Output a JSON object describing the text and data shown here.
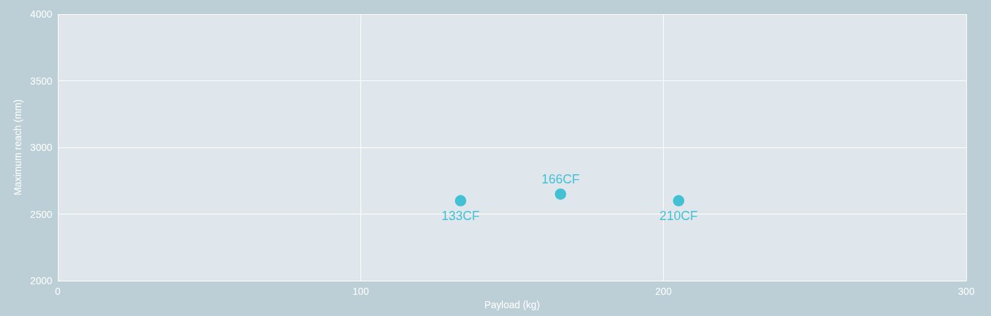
{
  "chart_data": {
    "type": "scatter",
    "xlabel": "Payload (kg)",
    "ylabel": "Maximum reach (mm)",
    "x": [
      133,
      166,
      205
    ],
    "values": [
      2600,
      2650,
      2600
    ],
    "color": "#1ab8d0",
    "marker": "circle",
    "xlim": [
      0,
      300
    ],
    "xticks": [
      0,
      100,
      200,
      300
    ],
    "ylim": [
      2000,
      4000
    ],
    "yticks": [
      2000,
      2500,
      3000,
      3500,
      4000
    ],
    "grid": true,
    "annotations": [
      {
        "text": "133CF",
        "x": 133,
        "y": 2600
      },
      {
        "text": "166CF",
        "x": 166,
        "y": 2650
      },
      {
        "text": "210CF",
        "x": 205,
        "y": 2600
      }
    ]
  }
}
